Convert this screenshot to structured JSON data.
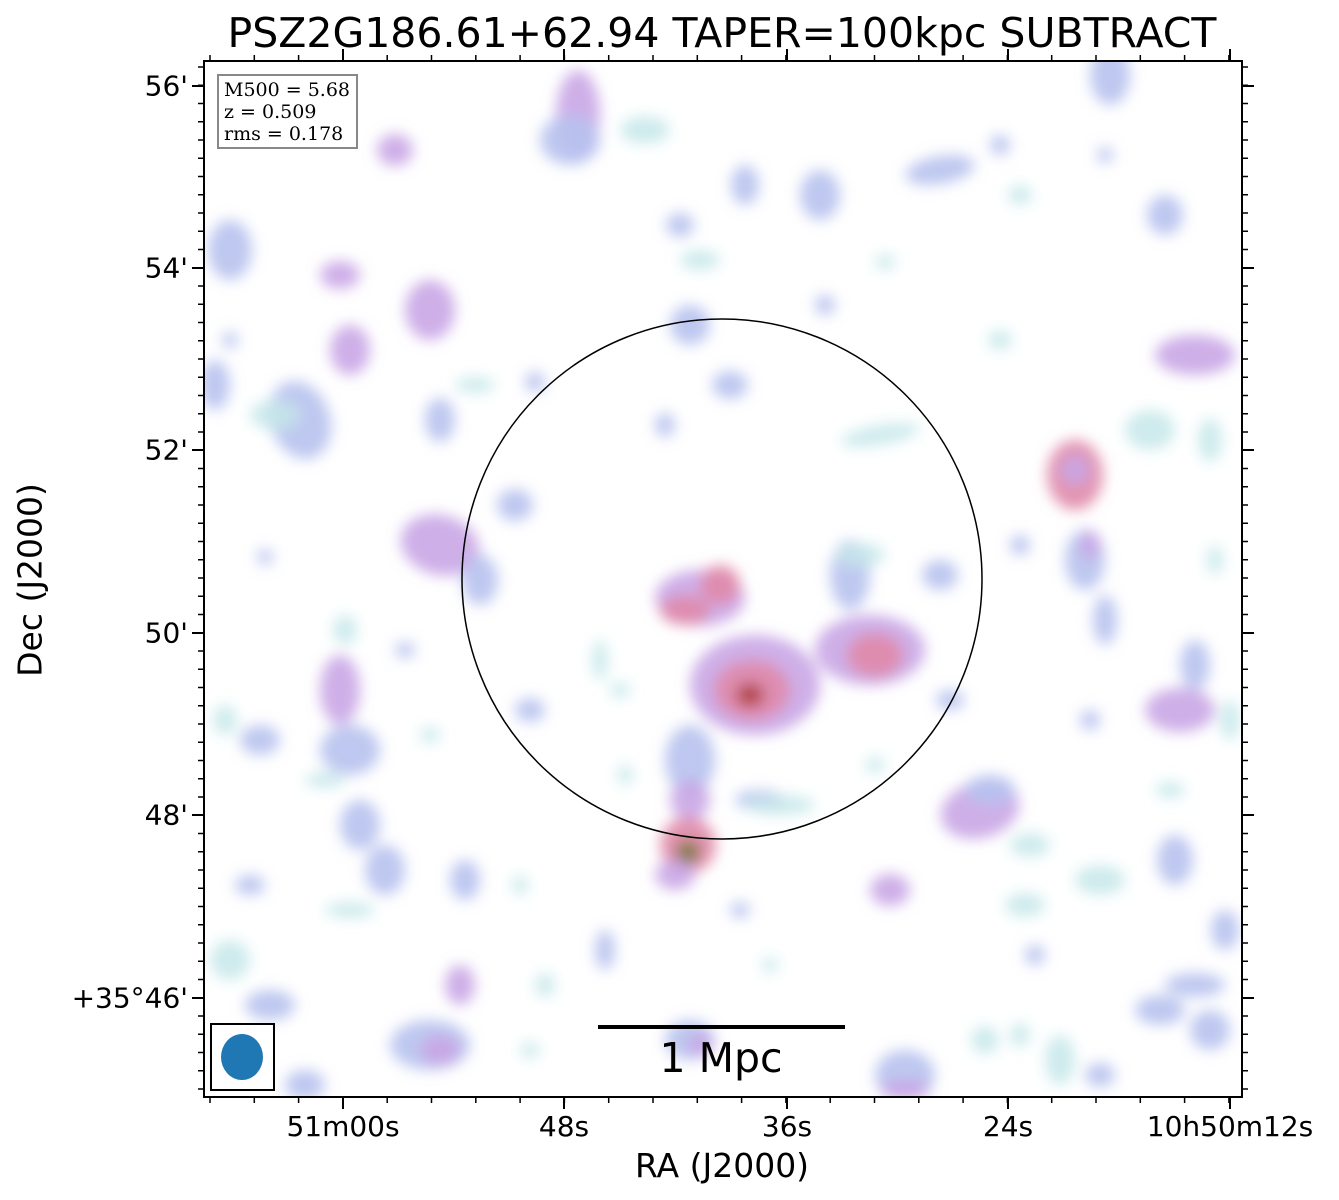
{
  "title": "PSZ2G186.61+62.94 TAPER=100kpc SUBTRACT",
  "axes": {
    "xlabel": "RA (J2000)",
    "ylabel": "Dec (J2000)",
    "xticks": [
      "51m00s",
      "48s",
      "36s",
      "24s",
      "10h50m12s"
    ],
    "yticks": [
      "56'",
      "54'",
      "52'",
      "50'",
      "48'",
      "+35°46'"
    ]
  },
  "info": {
    "m500": "M500 = 5.68",
    "z": "z = 0.509",
    "rms": "rms = 0.178"
  },
  "scalebar": {
    "label": "1 Mpc"
  },
  "beam": {
    "color": "#1f77b4"
  },
  "colors": {
    "faint": "#c6e8ea",
    "low": "#b7c2ee",
    "mid": "#c9a6e6",
    "high": "#e08aa8",
    "peak": "#b04040",
    "core": "#7a7a3a"
  }
}
